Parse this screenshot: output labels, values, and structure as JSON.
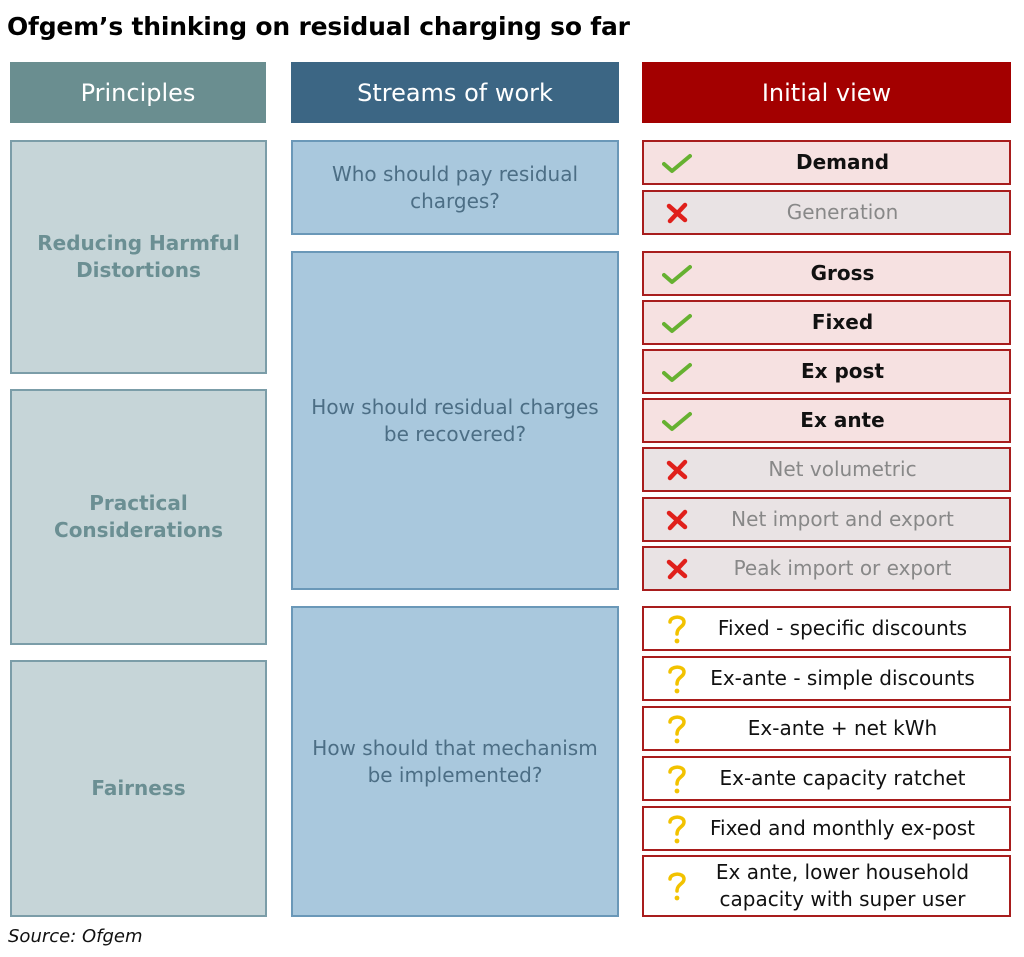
{
  "title": "Ofgem’s thinking on residual charging so far",
  "headers": {
    "principles": "Principles",
    "streams": "Streams of work",
    "view": "Initial view"
  },
  "principles": [
    "Reducing Harmful Distortions",
    "Practical Considerations",
    "Fairness"
  ],
  "streams": [
    "Who should pay residual charges?",
    "How should residual charges be recovered?",
    "How should that mechanism be implemented?"
  ],
  "views": [
    {
      "label": "Demand",
      "status": "yes"
    },
    {
      "label": "Generation",
      "status": "no"
    },
    {
      "label": "Gross",
      "status": "yes"
    },
    {
      "label": "Fixed",
      "status": "yes"
    },
    {
      "label": "Ex post",
      "status": "yes"
    },
    {
      "label": "Ex ante",
      "status": "yes"
    },
    {
      "label": "Net volumetric",
      "status": "no"
    },
    {
      "label": "Net import and export",
      "status": "no"
    },
    {
      "label": "Peak import or export",
      "status": "no"
    },
    {
      "label": "Fixed - specific discounts",
      "status": "maybe"
    },
    {
      "label": "Ex-ante - simple discounts",
      "status": "maybe"
    },
    {
      "label": "Ex-ante + net kWh",
      "status": "maybe"
    },
    {
      "label": "Ex-ante capacity ratchet",
      "status": "maybe"
    },
    {
      "label": "Fixed and monthly ex-post",
      "status": "maybe"
    },
    {
      "label": "Ex ante, lower household capacity with super user",
      "status": "maybe"
    }
  ],
  "icons": {
    "yes": "check-icon",
    "no": "cross-icon",
    "maybe": "question-icon"
  },
  "colors": {
    "principles_header": "#6a8e90",
    "streams_header": "#3c6684",
    "view_header": "#a30000",
    "check": "#66b131",
    "cross": "#e0201b",
    "question": "#f2c200"
  },
  "source": "Source: Ofgem"
}
